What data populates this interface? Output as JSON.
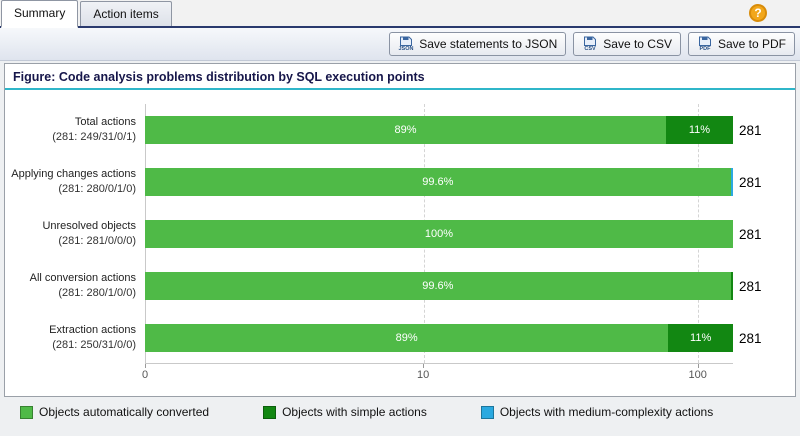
{
  "tabs": [
    {
      "label": "Summary",
      "active": true
    },
    {
      "label": "Action items",
      "active": false
    }
  ],
  "help": {
    "glyph": "?"
  },
  "toolbar": {
    "buttons": [
      {
        "label": "Save statements to JSON",
        "file_type": "JSON"
      },
      {
        "label": "Save to CSV",
        "file_type": "CSV"
      },
      {
        "label": "Save to PDF",
        "file_type": "PDF"
      }
    ]
  },
  "figure": {
    "title": "Figure: Code analysis problems distribution by SQL execution points"
  },
  "chart_data": {
    "type": "bar",
    "orientation": "horizontal",
    "title": "Figure: Code analysis problems distribution by SQL execution points",
    "x_axis": {
      "scale": "log",
      "ticks": [
        {
          "label": "0",
          "pos": 0
        },
        {
          "label": "10",
          "pos": 47.3
        },
        {
          "label": "100",
          "pos": 94
        }
      ]
    },
    "colors": {
      "auto_converted": "#4fba47",
      "simple_actions": "#128712",
      "medium_complexity": "#2aa9e0"
    },
    "rows": [
      {
        "label": "Total actions",
        "sublabel": "(281: 249/31/0/1)",
        "total": "281",
        "segments": [
          {
            "color": "#4fba47",
            "pct": 88.6,
            "text": "89%"
          },
          {
            "color": "#128712",
            "pct": 11.4,
            "text": "11%"
          }
        ]
      },
      {
        "label": "Applying changes actions",
        "sublabel": "(281: 280/0/1/0)",
        "total": "281",
        "segments": [
          {
            "color": "#4fba47",
            "pct": 99.6,
            "text": "99.6%"
          },
          {
            "color": "#2aa9e0",
            "pct": 0.4,
            "text": ""
          }
        ]
      },
      {
        "label": "Unresolved objects",
        "sublabel": "(281: 281/0/0/0)",
        "total": "281",
        "segments": [
          {
            "color": "#4fba47",
            "pct": 100,
            "text": "100%"
          }
        ]
      },
      {
        "label": "All conversion actions",
        "sublabel": "(281: 280/1/0/0)",
        "total": "281",
        "segments": [
          {
            "color": "#4fba47",
            "pct": 99.6,
            "text": "99.6%"
          },
          {
            "color": "#128712",
            "pct": 0.4,
            "text": ""
          }
        ]
      },
      {
        "label": "Extraction actions",
        "sublabel": "(281: 250/31/0/0)",
        "total": "281",
        "segments": [
          {
            "color": "#4fba47",
            "pct": 89,
            "text": "89%"
          },
          {
            "color": "#128712",
            "pct": 11,
            "text": "11%"
          }
        ]
      }
    ],
    "legend": [
      {
        "label": "Objects automatically converted",
        "color": "#4fba47"
      },
      {
        "label": "Objects with simple actions",
        "color": "#128712"
      },
      {
        "label": "Objects with medium-complexity actions",
        "color": "#2aa9e0"
      }
    ]
  }
}
